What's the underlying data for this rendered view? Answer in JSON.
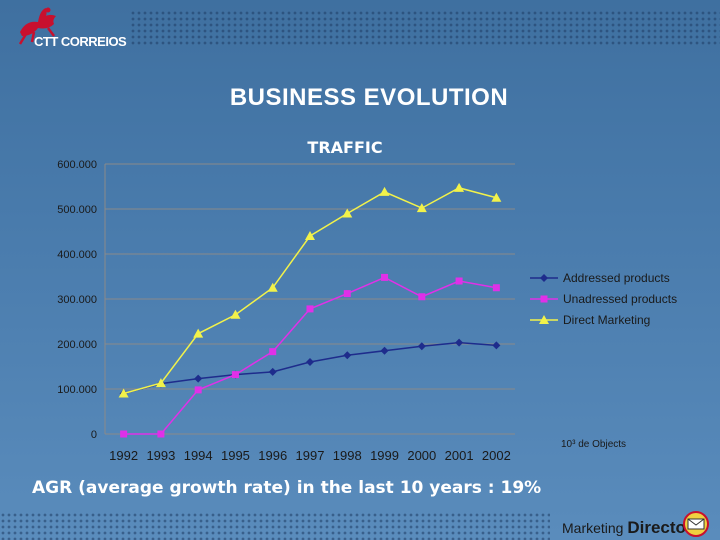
{
  "logo": {
    "text_part1": "CTT ",
    "text_part2": "CORREIOS"
  },
  "slide": {
    "title": "BUSINESS EVOLUTION",
    "agr_text": "AGR (average growth rate) in the last 10 years : 19%"
  },
  "brand": {
    "part1": "Marketing ",
    "part2": "Directo"
  },
  "colors": {
    "grid": "#8a8a8a",
    "addressed": "#1e2c8c",
    "unadressed": "#e030e8",
    "direct": "#f2f24a",
    "text": "#1a1a1a"
  },
  "chart_data": {
    "type": "line",
    "title": "TRAFFIC",
    "xlabel": "",
    "ylabel": "",
    "unit_note": "10³ de Objects",
    "ylim": [
      0,
      600000
    ],
    "y_ticks": [
      0,
      100000,
      200000,
      300000,
      400000,
      500000,
      600000
    ],
    "y_tick_labels": [
      "0",
      "100.000",
      "200.000",
      "300.000",
      "400.000",
      "500.000",
      "600.000"
    ],
    "categories": [
      "1992",
      "1993",
      "1994",
      "1995",
      "1996",
      "1997",
      "1998",
      "1999",
      "2000",
      "2001",
      "2002"
    ],
    "legend_position": "right",
    "series": [
      {
        "name": "Addressed products",
        "marker": "diamond",
        "color_key": "addressed",
        "values": [
          90000,
          112000,
          123000,
          132000,
          138000,
          160000,
          175000,
          185000,
          195000,
          203000,
          197000
        ]
      },
      {
        "name": "Unadressed products",
        "marker": "square",
        "color_key": "unadressed",
        "values": [
          0,
          0,
          98000,
          132000,
          183000,
          278000,
          312000,
          348000,
          305000,
          340000,
          325000
        ]
      },
      {
        "name": "Direct Marketing",
        "marker": "triangle",
        "color_key": "direct",
        "values": [
          90000,
          113000,
          223000,
          265000,
          325000,
          440000,
          490000,
          538000,
          502000,
          547000,
          525000
        ]
      }
    ]
  }
}
